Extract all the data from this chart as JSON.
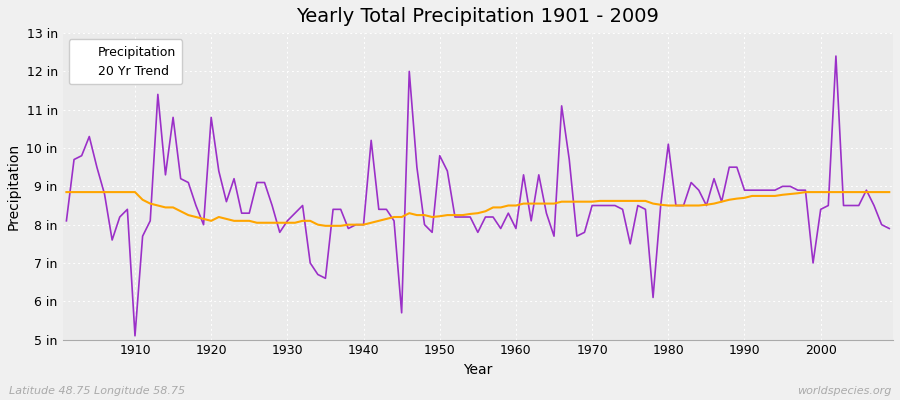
{
  "title": "Yearly Total Precipitation 1901 - 2009",
  "xlabel": "Year",
  "ylabel": "Precipitation",
  "footnote_left": "Latitude 48.75 Longitude 58.75",
  "footnote_right": "worldspecies.org",
  "ylim": [
    5,
    13
  ],
  "ytick_labels": [
    "5 in",
    "6 in",
    "7 in",
    "8 in",
    "9 in",
    "10 in",
    "11 in",
    "12 in",
    "13 in"
  ],
  "ytick_values": [
    5,
    6,
    7,
    8,
    9,
    10,
    11,
    12,
    13
  ],
  "years": [
    1901,
    1902,
    1903,
    1904,
    1905,
    1906,
    1907,
    1908,
    1909,
    1910,
    1911,
    1912,
    1913,
    1914,
    1915,
    1916,
    1917,
    1918,
    1919,
    1920,
    1921,
    1922,
    1923,
    1924,
    1925,
    1926,
    1927,
    1928,
    1929,
    1930,
    1931,
    1932,
    1933,
    1934,
    1935,
    1936,
    1937,
    1938,
    1939,
    1940,
    1941,
    1942,
    1943,
    1944,
    1945,
    1946,
    1947,
    1948,
    1949,
    1950,
    1951,
    1952,
    1953,
    1954,
    1955,
    1956,
    1957,
    1958,
    1959,
    1960,
    1961,
    1962,
    1963,
    1964,
    1965,
    1966,
    1967,
    1968,
    1969,
    1970,
    1971,
    1972,
    1973,
    1974,
    1975,
    1976,
    1977,
    1978,
    1979,
    1980,
    1981,
    1982,
    1983,
    1984,
    1985,
    1986,
    1987,
    1988,
    1989,
    1990,
    1991,
    1992,
    1993,
    1994,
    1995,
    1996,
    1997,
    1998,
    1999,
    2000,
    2001,
    2002,
    2003,
    2004,
    2005,
    2006,
    2007,
    2008,
    2009
  ],
  "precip": [
    8.1,
    9.7,
    9.8,
    10.3,
    9.5,
    8.8,
    7.6,
    8.2,
    8.4,
    5.1,
    7.7,
    8.1,
    11.4,
    9.3,
    10.8,
    9.2,
    9.1,
    8.5,
    8.0,
    10.8,
    9.4,
    8.6,
    9.2,
    8.3,
    8.3,
    9.1,
    9.1,
    8.5,
    7.8,
    8.1,
    8.3,
    8.5,
    7.0,
    6.7,
    6.6,
    8.4,
    8.4,
    7.9,
    8.0,
    8.0,
    10.2,
    8.4,
    8.4,
    8.1,
    5.7,
    12.0,
    9.5,
    8.0,
    7.8,
    9.8,
    9.4,
    8.2,
    8.2,
    8.2,
    7.8,
    8.2,
    8.2,
    7.9,
    8.3,
    7.9,
    9.3,
    8.1,
    9.3,
    8.3,
    7.7,
    11.1,
    9.7,
    7.7,
    7.8,
    8.5,
    8.5,
    8.5,
    8.5,
    8.4,
    7.5,
    8.5,
    8.4,
    6.1,
    8.5,
    10.1,
    8.5,
    8.5,
    9.1,
    8.9,
    8.5,
    9.2,
    8.6,
    9.5,
    9.5,
    8.9,
    8.9,
    8.9,
    8.9,
    8.9,
    9.0,
    9.0,
    8.9,
    8.9,
    7.0,
    8.4,
    8.5,
    12.4,
    8.5,
    8.5,
    8.5,
    8.9,
    8.5,
    8.0,
    7.9
  ],
  "trend": [
    8.85,
    8.85,
    8.85,
    8.85,
    8.85,
    8.85,
    8.85,
    8.85,
    8.85,
    8.85,
    8.65,
    8.55,
    8.5,
    8.45,
    8.45,
    8.35,
    8.25,
    8.2,
    8.15,
    8.1,
    8.2,
    8.15,
    8.1,
    8.1,
    8.1,
    8.05,
    8.05,
    8.05,
    8.05,
    8.05,
    8.05,
    8.1,
    8.1,
    8.0,
    7.97,
    7.97,
    7.97,
    8.0,
    8.0,
    8.0,
    8.05,
    8.1,
    8.15,
    8.2,
    8.2,
    8.3,
    8.25,
    8.25,
    8.2,
    8.22,
    8.25,
    8.25,
    8.25,
    8.28,
    8.3,
    8.35,
    8.45,
    8.45,
    8.5,
    8.5,
    8.55,
    8.55,
    8.55,
    8.55,
    8.55,
    8.6,
    8.6,
    8.6,
    8.6,
    8.6,
    8.62,
    8.62,
    8.62,
    8.62,
    8.62,
    8.62,
    8.62,
    8.55,
    8.52,
    8.5,
    8.5,
    8.5,
    8.5,
    8.5,
    8.52,
    8.55,
    8.6,
    8.65,
    8.68,
    8.7,
    8.75,
    8.75,
    8.75,
    8.75,
    8.78,
    8.8,
    8.82,
    8.85,
    8.85,
    8.85,
    8.85,
    8.85,
    8.85,
    8.85,
    8.85,
    8.85,
    8.85,
    8.85,
    8.85
  ],
  "precip_color": "#9B30C8",
  "trend_color": "#FFA500",
  "bg_color": "#f0f0f0",
  "plot_bg_color": "#ebebeb",
  "grid_color": "#ffffff",
  "title_fontsize": 14,
  "label_fontsize": 10,
  "tick_fontsize": 9,
  "legend_fontsize": 9
}
